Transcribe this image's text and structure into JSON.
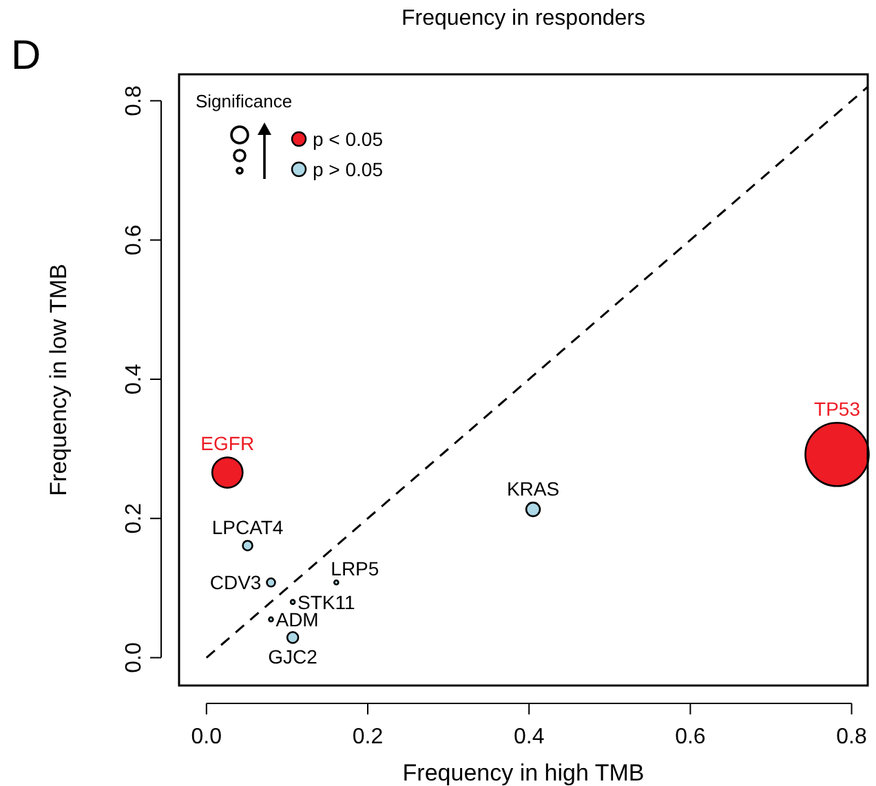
{
  "chart_data": {
    "type": "bubble",
    "title": "Frequency in responders",
    "xlabel": "Frequency in high TMB",
    "ylabel": "Frequency in low TMB",
    "legend_title": "Significance",
    "annotations": [
      "D"
    ],
    "xlim": [
      -0.034,
      0.82
    ],
    "ylim": [
      -0.04,
      0.838
    ],
    "xticks": [
      {
        "value": 0,
        "label": "0.0"
      },
      0.2,
      0.4,
      0.6,
      0.8
    ],
    "yticks": [
      {
        "value": 0,
        "label": "0.0"
      },
      0.2,
      0.4,
      0.6,
      0.8
    ],
    "grid": false,
    "legend": "top left",
    "marker": "circle",
    "series": [
      {
        "name": "p < 0.05",
        "color": "#ee1c25",
        "x": [
          0.782,
          0.026
        ],
        "values": [
          0.292,
          0.266
        ],
        "sizes": [
          1,
          0.23
        ],
        "value_labels": [
          "TP53",
          "EGFR"
        ]
      },
      {
        "name": "p > 0.05",
        "color": "#add8e6",
        "x": [
          0.405,
          0.051,
          0.08,
          0.161,
          0.107,
          0.08,
          0.107
        ],
        "values": [
          0.213,
          0.161,
          0.108,
          0.108,
          0.08,
          0.055,
          0.029
        ],
        "sizes": [
          0.047,
          0.023,
          0.017,
          0.004,
          0.004,
          0.004,
          0.03
        ],
        "value_labels": [
          "KRAS",
          "LPCAT4",
          "CDV3",
          "LRP5",
          "STK11",
          "ADM",
          "GJC2"
        ]
      },
      {
        "type": "line",
        "color": "#000000",
        "line_style": "dashed",
        "marker": "none",
        "x": [
          0,
          0.82
        ],
        "values": [
          0,
          0.82
        ]
      }
    ]
  }
}
